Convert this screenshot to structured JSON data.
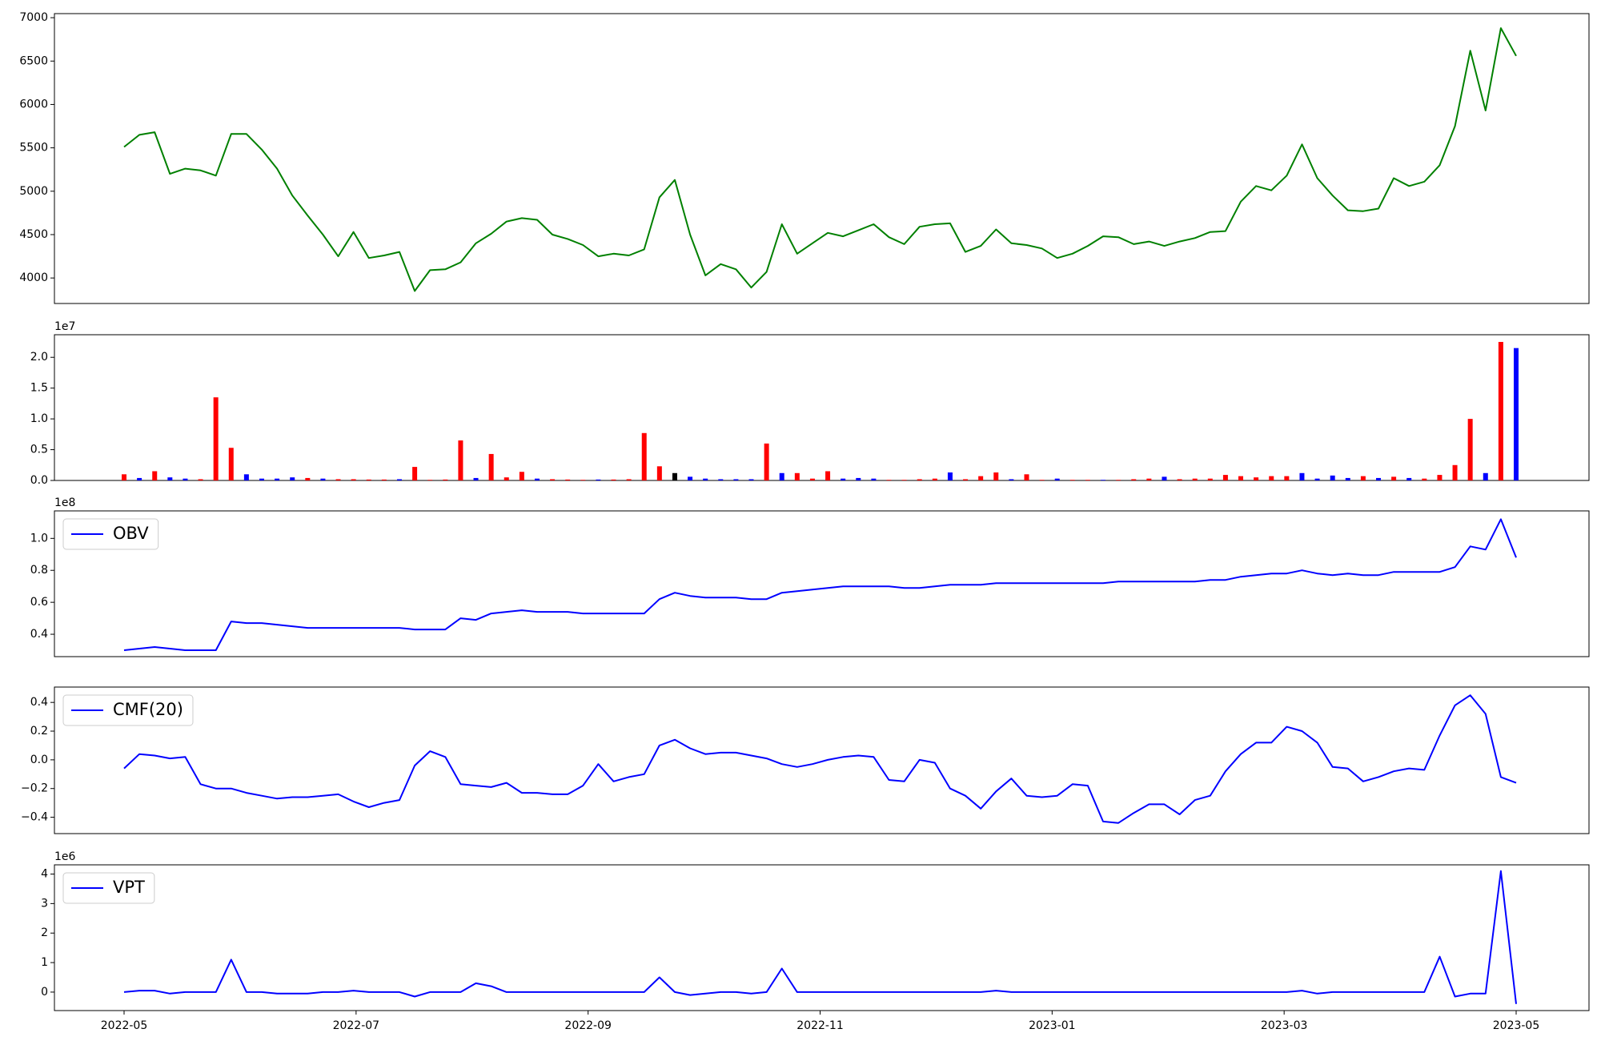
{
  "chart_data": [
    {
      "type": "line",
      "series": [
        {
          "color": "#008000",
          "values": [
            5510,
            5650,
            5680,
            5200,
            5260,
            5240,
            5180,
            5660,
            5660,
            5480,
            5260,
            4950,
            4720,
            4500,
            4250,
            4530,
            4230,
            4260,
            4300,
            3850,
            4090,
            4100,
            4180,
            4400,
            4510,
            4650,
            4690,
            4670,
            4500,
            4450,
            4380,
            4250,
            4280,
            4260,
            4330,
            4930,
            5130,
            4500,
            4030,
            4160,
            4100,
            3890,
            4070,
            4620,
            4280,
            4400,
            4520,
            4480,
            4550,
            4620,
            4470,
            4390,
            4590,
            4620,
            4630,
            4300,
            4370,
            4560,
            4400,
            4380,
            4340,
            4230,
            4280,
            4370,
            4480,
            4470,
            4390,
            4420,
            4370,
            4420,
            4460,
            4530,
            4540,
            4880,
            5060,
            5010,
            5180,
            5540,
            5150,
            4950,
            4780,
            4770,
            4800,
            5150,
            5060,
            5110,
            5300,
            5750,
            6620,
            5930,
            6880,
            6560
          ]
        }
      ],
      "ylim": [
        3706,
        7047
      ],
      "yticks": [
        4000,
        4500,
        5000,
        5500,
        6000,
        6500,
        7000
      ]
    },
    {
      "type": "bar",
      "values": [
        1000000,
        400000,
        1500000,
        500000,
        300000,
        200000,
        13500000,
        5300000,
        1000000,
        300000,
        300000,
        500000,
        400000,
        300000,
        200000,
        200000,
        150000,
        150000,
        200000,
        2200000,
        100000,
        150000,
        6500000,
        400000,
        4300000,
        500000,
        1400000,
        300000,
        200000,
        150000,
        100000,
        150000,
        150000,
        200000,
        7700000,
        2300000,
        1200000,
        600000,
        300000,
        200000,
        200000,
        200000,
        6000000,
        1200000,
        1200000,
        300000,
        1500000,
        300000,
        400000,
        300000,
        100000,
        100000,
        200000,
        300000,
        1300000,
        200000,
        700000,
        1300000,
        200000,
        1000000,
        100000,
        300000,
        100000,
        100000,
        100000,
        100000,
        200000,
        300000,
        600000,
        200000,
        300000,
        300000,
        900000,
        700000,
        500000,
        700000,
        700000,
        1200000,
        300000,
        800000,
        400000,
        700000,
        400000,
        600000,
        400000,
        300000,
        900000,
        2500000,
        10000000,
        1200000,
        22500000,
        21500000
      ],
      "colors": [
        "#ff0000",
        "#0000ff",
        "#ff0000",
        "#0000ff",
        "#0000ff",
        "#ff0000",
        "#ff0000",
        "#ff0000",
        "#0000ff",
        "#0000ff",
        "#0000ff",
        "#0000ff",
        "#ff0000",
        "#0000ff",
        "#ff0000",
        "#ff0000",
        "#ff0000",
        "#ff0000",
        "#0000ff",
        "#ff0000",
        "#ff0000",
        "#ff0000",
        "#ff0000",
        "#0000ff",
        "#ff0000",
        "#ff0000",
        "#ff0000",
        "#0000ff",
        "#ff0000",
        "#ff0000",
        "#ff0000",
        "#0000ff",
        "#ff0000",
        "#ff0000",
        "#ff0000",
        "#ff0000",
        "#000000",
        "#0000ff",
        "#0000ff",
        "#0000ff",
        "#0000ff",
        "#0000ff",
        "#ff0000",
        "#0000ff",
        "#ff0000",
        "#ff0000",
        "#ff0000",
        "#0000ff",
        "#0000ff",
        "#0000ff",
        "#ff0000",
        "#ff0000",
        "#ff0000",
        "#ff0000",
        "#0000ff",
        "#ff0000",
        "#ff0000",
        "#ff0000",
        "#0000ff",
        "#ff0000",
        "#ff0000",
        "#0000ff",
        "#ff0000",
        "#ff0000",
        "#0000ff",
        "#ff0000",
        "#ff0000",
        "#ff0000",
        "#0000ff",
        "#ff0000",
        "#ff0000",
        "#ff0000",
        "#ff0000",
        "#ff0000",
        "#ff0000",
        "#ff0000",
        "#ff0000",
        "#0000ff",
        "#0000ff",
        "#0000ff",
        "#0000ff",
        "#ff0000",
        "#0000ff",
        "#ff0000",
        "#0000ff",
        "#ff0000",
        "#ff0000",
        "#ff0000",
        "#ff0000",
        "#0000ff",
        "#ff0000",
        "#0000ff"
      ],
      "ylim": [
        0,
        23670000
      ],
      "yticks": [
        {
          "value": 0,
          "label": "0.0"
        },
        {
          "value": 5000000,
          "label": "0.5"
        },
        {
          "value": 10000000,
          "label": "1.0"
        },
        {
          "value": 15000000,
          "label": "1.5"
        },
        {
          "value": 20000000,
          "label": "2.0"
        }
      ],
      "offset_label": "1e7"
    },
    {
      "type": "line",
      "series": [
        {
          "name": "OBV",
          "color": "#0000ff",
          "values": [
            30000000,
            31000000,
            32000000,
            31000000,
            30000000,
            30000000,
            30000000,
            48000000,
            47000000,
            47000000,
            46000000,
            45000000,
            44000000,
            44000000,
            44000000,
            44000000,
            44000000,
            44000000,
            44000000,
            43000000,
            43000000,
            43000000,
            50000000,
            49000000,
            53000000,
            54000000,
            55000000,
            54000000,
            54000000,
            54000000,
            53000000,
            53000000,
            53000000,
            53000000,
            53000000,
            62000000,
            66000000,
            64000000,
            63000000,
            63000000,
            63000000,
            62000000,
            62000000,
            66000000,
            67000000,
            68000000,
            69000000,
            70000000,
            70000000,
            70000000,
            70000000,
            69000000,
            69000000,
            70000000,
            71000000,
            71000000,
            71000000,
            72000000,
            72000000,
            72000000,
            72000000,
            72000000,
            72000000,
            72000000,
            72000000,
            73000000,
            73000000,
            73000000,
            73000000,
            73000000,
            73000000,
            74000000,
            74000000,
            76000000,
            77000000,
            78000000,
            78000000,
            80000000,
            78000000,
            77000000,
            78000000,
            77000000,
            77000000,
            79000000,
            79000000,
            79000000,
            79000000,
            82000000,
            95000000,
            93000000,
            112000000,
            88000000
          ]
        }
      ],
      "ylim": [
        26000000,
        117200000
      ],
      "yticks": [
        {
          "value": 40000000,
          "label": "0.4"
        },
        {
          "value": 60000000,
          "label": "0.6"
        },
        {
          "value": 80000000,
          "label": "0.8"
        },
        {
          "value": 100000000,
          "label": "1.0"
        }
      ],
      "offset_label": "1e8",
      "legend": "upper left"
    },
    {
      "type": "line",
      "series": [
        {
          "name": "CMF(20)",
          "color": "#0000ff",
          "values": [
            -0.06,
            0.04,
            0.03,
            0.01,
            0.02,
            -0.17,
            -0.2,
            -0.2,
            -0.23,
            -0.25,
            -0.27,
            -0.26,
            -0.26,
            -0.25,
            -0.24,
            -0.29,
            -0.33,
            -0.3,
            -0.28,
            -0.04,
            0.06,
            0.02,
            -0.17,
            -0.18,
            -0.19,
            -0.16,
            -0.23,
            -0.23,
            -0.24,
            -0.24,
            -0.18,
            -0.03,
            -0.15,
            -0.12,
            -0.1,
            0.1,
            0.14,
            0.08,
            0.04,
            0.05,
            0.05,
            0.03,
            0.01,
            -0.03,
            -0.05,
            -0.03,
            0.0,
            0.02,
            0.03,
            0.02,
            -0.14,
            -0.15,
            0.0,
            -0.02,
            -0.2,
            -0.25,
            -0.34,
            -0.22,
            -0.13,
            -0.25,
            -0.26,
            -0.25,
            -0.17,
            -0.18,
            -0.43,
            -0.44,
            -0.37,
            -0.31,
            -0.31,
            -0.38,
            -0.28,
            -0.25,
            -0.08,
            0.04,
            0.12,
            0.12,
            0.23,
            0.2,
            0.12,
            -0.05,
            -0.06,
            -0.15,
            -0.12,
            -0.08,
            -0.06,
            -0.07,
            0.17,
            0.38,
            0.45,
            0.32,
            -0.12,
            -0.16
          ]
        }
      ],
      "ylim": [
        -0.514,
        0.507
      ],
      "yticks": [
        {
          "value": -0.4,
          "label": "−0.4"
        },
        {
          "value": -0.2,
          "label": "−0.2"
        },
        {
          "value": 0,
          "label": "0.0"
        },
        0.2,
        0.4
      ],
      "legend": "upper left"
    },
    {
      "type": "line",
      "series": [
        {
          "name": "VPT",
          "color": "#0000ff",
          "values": [
            0,
            50000,
            50000,
            -50000,
            0,
            0,
            0,
            1100000,
            0,
            0,
            -50000,
            -50000,
            -50000,
            0,
            0,
            50000,
            0,
            0,
            0,
            -150000,
            0,
            0,
            0,
            300000,
            200000,
            0,
            0,
            0,
            0,
            0,
            0,
            0,
            0,
            0,
            0,
            500000,
            0,
            -100000,
            -50000,
            0,
            0,
            -50000,
            0,
            800000,
            0,
            0,
            0,
            0,
            0,
            0,
            0,
            0,
            0,
            0,
            0,
            0,
            0,
            50000,
            0,
            0,
            0,
            0,
            0,
            0,
            0,
            0,
            0,
            0,
            0,
            0,
            0,
            0,
            0,
            0,
            0,
            0,
            0,
            50000,
            -50000,
            0,
            0,
            0,
            0,
            0,
            0,
            0,
            1200000,
            -150000,
            -50000,
            -50000,
            4100000,
            -400000
          ]
        }
      ],
      "ylim": [
        -626000,
        4313000
      ],
      "yticks": [
        {
          "value": 0,
          "label": "0"
        },
        {
          "value": 1000000,
          "label": "1"
        },
        {
          "value": 2000000,
          "label": "2"
        },
        {
          "value": 3000000,
          "label": "3"
        },
        {
          "value": 4000000,
          "label": "4"
        }
      ],
      "offset_label": "1e6",
      "legend": "upper left",
      "xticks": [
        "2022-05",
        "2022-07",
        "2022-09",
        "2022-11",
        "2023-01",
        "2023-03",
        "2023-05"
      ]
    }
  ]
}
